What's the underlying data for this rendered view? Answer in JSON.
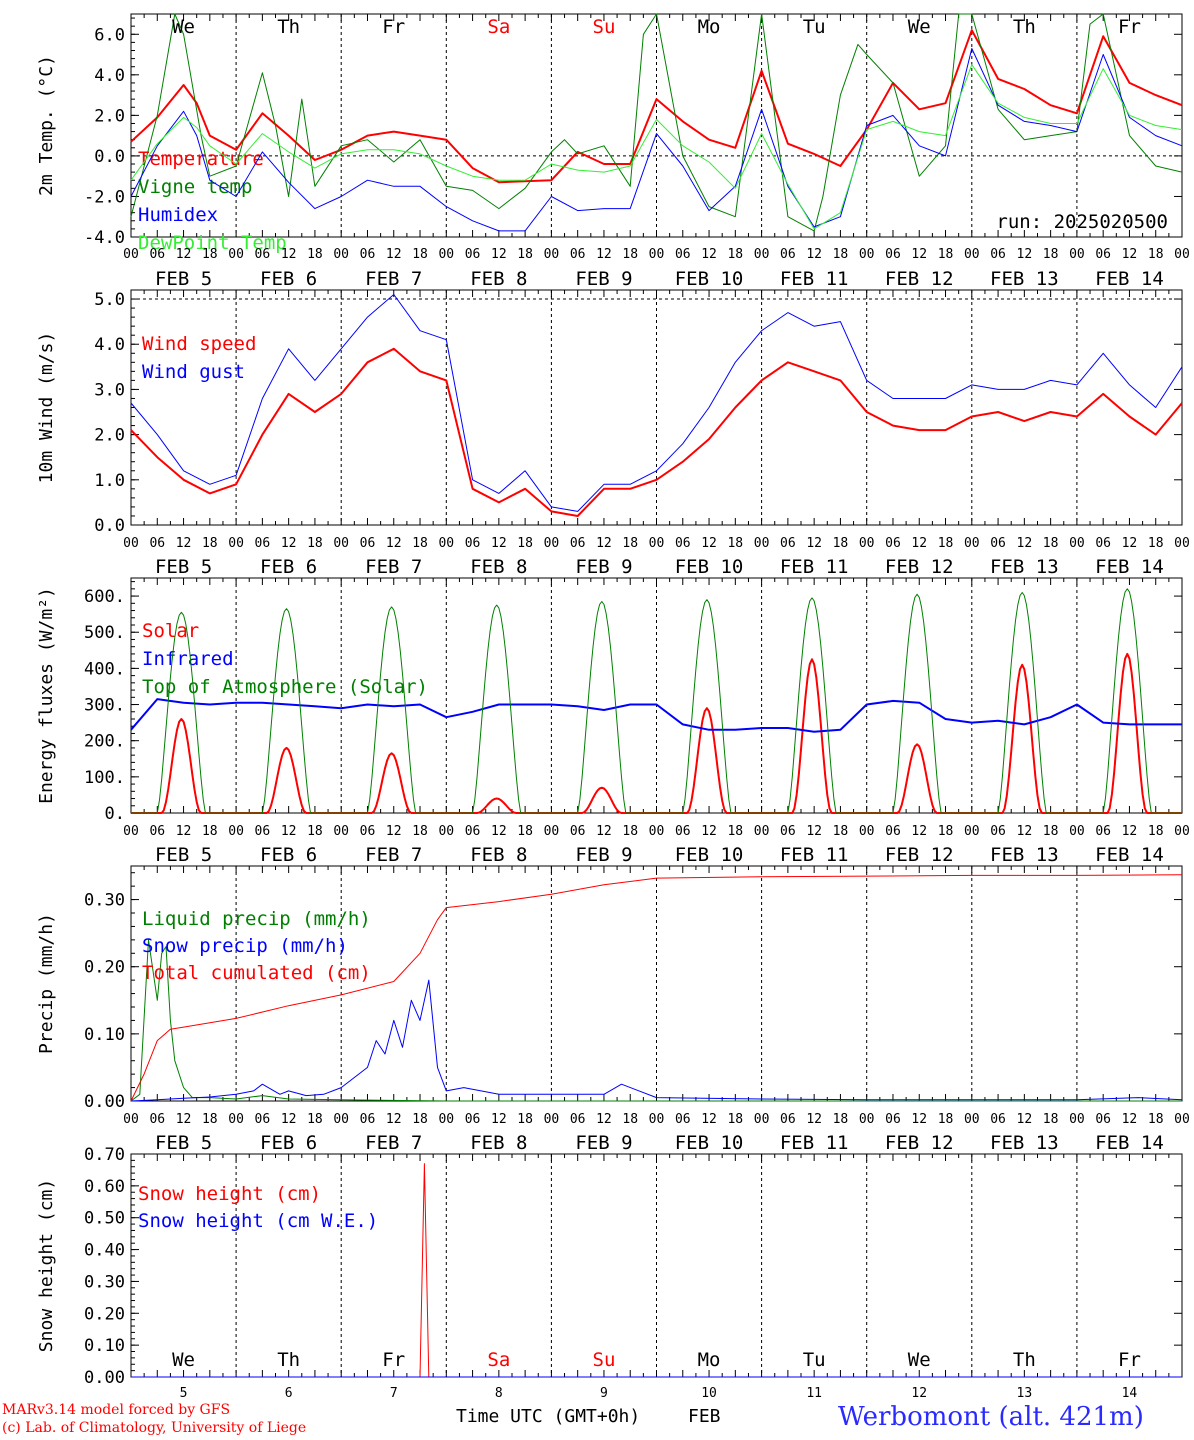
{
  "meta": {
    "run_label": "run: 2025020500",
    "footer_model": "MARv3.14 model forced by GFS",
    "footer_lab": "(c) Lab. of Climatology, University of Liege",
    "footer_axis_title": "Time UTC (GMT+0h)",
    "footer_month": "FEB",
    "station": "Werbomont (alt. 421m)"
  },
  "colors": {
    "red": "#ff0000",
    "green": "#008000",
    "blue": "#0000ff",
    "lightgreen": "#33ee33",
    "weekend": "#ff0000",
    "station": "#2a2aff"
  },
  "days": [
    {
      "abbr": "We",
      "date": "FEB  5",
      "num": "5",
      "weekend": false
    },
    {
      "abbr": "Th",
      "date": "FEB  6",
      "num": "6",
      "weekend": false
    },
    {
      "abbr": "Fr",
      "date": "FEB  7",
      "num": "7",
      "weekend": false
    },
    {
      "abbr": "Sa",
      "date": "FEB  8",
      "num": "8",
      "weekend": true
    },
    {
      "abbr": "Su",
      "date": "FEB  9",
      "num": "9",
      "weekend": true
    },
    {
      "abbr": "Mo",
      "date": "FEB 10",
      "num": "10",
      "weekend": false
    },
    {
      "abbr": "Tu",
      "date": "FEB 11",
      "num": "11",
      "weekend": false
    },
    {
      "abbr": "We",
      "date": "FEB 12",
      "num": "12",
      "weekend": false
    },
    {
      "abbr": "Th",
      "date": "FEB 13",
      "num": "13",
      "weekend": false
    },
    {
      "abbr": "Fr",
      "date": "FEB 14",
      "num": "14",
      "weekend": false
    }
  ],
  "hour_labels": [
    "00",
    "06",
    "12",
    "18"
  ],
  "chart_data": [
    {
      "id": "temp",
      "type": "line",
      "ylabel": "2m Temp. (°C)",
      "ylim": [
        -4,
        7
      ],
      "yticks": [
        -4,
        -2,
        0,
        2,
        4,
        6
      ],
      "ytick_labels": [
        "-4.0",
        "-2.0",
        "0.0",
        "2.0",
        "4.0",
        "6.0"
      ],
      "ref_line": 0,
      "x_unit": "hours since FEB 5 00 UTC",
      "series": [
        {
          "name": "Temperature",
          "color": "#ff0000",
          "width": 2,
          "x": [
            0,
            6,
            12,
            15,
            18,
            24,
            30,
            36,
            42,
            48,
            54,
            60,
            66,
            72,
            78,
            84,
            96,
            102,
            108,
            114,
            120,
            126,
            132,
            138,
            144,
            150,
            156,
            162,
            168,
            174,
            180,
            186,
            192,
            198,
            204,
            210,
            216,
            222,
            228,
            234,
            240
          ],
          "y": [
            0.7,
            1.9,
            3.5,
            2.6,
            1.0,
            0.3,
            2.1,
            1.0,
            -0.2,
            0.3,
            1.0,
            1.2,
            1.0,
            0.8,
            -0.6,
            -1.3,
            -1.2,
            0.2,
            -0.4,
            -0.4,
            2.8,
            1.7,
            0.8,
            0.4,
            4.2,
            0.6,
            0.1,
            -0.5,
            1.3,
            3.6,
            2.3,
            2.6,
            6.2,
            3.8,
            3.3,
            2.5,
            2.1,
            5.9,
            3.6,
            3.0,
            2.5
          ]
        },
        {
          "name": "Vigne temp",
          "color": "#008000",
          "width": 1,
          "x": [
            0,
            6,
            10,
            12,
            16,
            18,
            24,
            30,
            33,
            36,
            39,
            42,
            48,
            54,
            60,
            66,
            72,
            78,
            84,
            90,
            96,
            99,
            102,
            108,
            114,
            117,
            120,
            126,
            132,
            138,
            144,
            150,
            156,
            158,
            162,
            166,
            168,
            174,
            180,
            186,
            189,
            192,
            198,
            204,
            210,
            216,
            219,
            222,
            228,
            234,
            240
          ],
          "y": [
            -3.0,
            2.0,
            7.0,
            6.0,
            1.0,
            -1.0,
            -0.5,
            4.1,
            1.5,
            -2.0,
            2.8,
            -1.5,
            0.5,
            0.8,
            -0.3,
            0.8,
            -1.5,
            -1.7,
            -2.6,
            -1.6,
            0.2,
            0.8,
            0.1,
            0.5,
            -1.5,
            6.0,
            7.0,
            0.0,
            -2.5,
            -3.0,
            7.0,
            -3.0,
            -3.7,
            -2.0,
            3.0,
            5.5,
            5.0,
            3.6,
            -1.0,
            0.5,
            7.0,
            7.0,
            2.3,
            0.8,
            1.0,
            1.2,
            6.5,
            7.0,
            1.0,
            -0.5,
            -0.8
          ]
        },
        {
          "name": "Humidex",
          "color": "#0000ff",
          "width": 1,
          "x": [
            0,
            6,
            12,
            15,
            18,
            24,
            30,
            36,
            42,
            48,
            54,
            60,
            66,
            72,
            78,
            84,
            90,
            96,
            102,
            108,
            114,
            120,
            126,
            132,
            138,
            144,
            150,
            156,
            162,
            168,
            174,
            180,
            186,
            192,
            198,
            204,
            210,
            216,
            222,
            228,
            234,
            240
          ],
          "y": [
            -2.0,
            0.5,
            2.2,
            1.0,
            -1.2,
            -2.0,
            0.2,
            -1.3,
            -2.6,
            -2.0,
            -1.2,
            -1.5,
            -1.5,
            -2.5,
            -3.2,
            -3.7,
            -3.7,
            -2.0,
            -2.7,
            -2.6,
            -2.6,
            1.1,
            -0.5,
            -2.7,
            -1.5,
            2.3,
            -1.5,
            -3.5,
            -3.0,
            1.5,
            2.0,
            0.5,
            0.0,
            5.3,
            2.5,
            1.7,
            1.5,
            1.2,
            5.0,
            1.9,
            1.0,
            0.5
          ]
        },
        {
          "name": "DewPoint Temp",
          "color": "#33ee33",
          "width": 1,
          "x": [
            0,
            6,
            12,
            15,
            18,
            24,
            30,
            36,
            42,
            48,
            54,
            60,
            66,
            72,
            78,
            84,
            90,
            96,
            102,
            108,
            114,
            120,
            126,
            132,
            138,
            144,
            150,
            156,
            162,
            168,
            174,
            180,
            186,
            192,
            198,
            204,
            210,
            216,
            222,
            228,
            234,
            240
          ],
          "y": [
            -1.2,
            0.6,
            1.9,
            1.4,
            0.5,
            -0.4,
            1.1,
            0.2,
            -0.6,
            0.1,
            0.3,
            0.3,
            0.1,
            -0.5,
            -1.0,
            -1.2,
            -1.2,
            -0.4,
            -0.7,
            -0.8,
            -0.5,
            1.8,
            0.5,
            -0.3,
            -1.6,
            1.1,
            -1.4,
            -3.6,
            -2.8,
            1.3,
            1.7,
            1.2,
            1.0,
            4.5,
            2.6,
            1.9,
            1.6,
            1.6,
            4.3,
            2.0,
            1.5,
            1.3
          ]
        }
      ]
    },
    {
      "id": "wind",
      "type": "line",
      "ylabel": "10m Wind (m/s)",
      "ylim": [
        0,
        5.2
      ],
      "yticks": [
        0,
        1,
        2,
        3,
        4,
        5
      ],
      "ytick_labels": [
        "0.0",
        "1.0",
        "2.0",
        "3.0",
        "4.0",
        "5.0"
      ],
      "ref_line": 5,
      "series": [
        {
          "name": "Wind speed",
          "color": "#ff0000",
          "width": 2,
          "x": [
            0,
            6,
            12,
            18,
            24,
            30,
            36,
            42,
            48,
            54,
            60,
            66,
            72,
            78,
            84,
            90,
            96,
            102,
            108,
            114,
            120,
            126,
            132,
            138,
            144,
            150,
            156,
            162,
            168,
            174,
            180,
            186,
            192,
            198,
            204,
            210,
            216,
            222,
            228,
            234,
            240
          ],
          "y": [
            2.1,
            1.5,
            1.0,
            0.7,
            0.9,
            2.0,
            2.9,
            2.5,
            2.9,
            3.6,
            3.9,
            3.4,
            3.2,
            0.8,
            0.5,
            0.8,
            0.3,
            0.2,
            0.8,
            0.8,
            1.0,
            1.4,
            1.9,
            2.6,
            3.2,
            3.6,
            3.4,
            3.2,
            2.5,
            2.2,
            2.1,
            2.1,
            2.4,
            2.5,
            2.3,
            2.5,
            2.4,
            2.9,
            2.4,
            2.0,
            2.7
          ]
        },
        {
          "name": "Wind gust",
          "color": "#0000ff",
          "width": 1,
          "x": [
            0,
            6,
            12,
            18,
            24,
            30,
            36,
            42,
            48,
            54,
            60,
            66,
            72,
            78,
            84,
            90,
            96,
            102,
            108,
            114,
            120,
            126,
            132,
            138,
            144,
            150,
            156,
            162,
            168,
            174,
            180,
            186,
            192,
            198,
            204,
            210,
            216,
            222,
            228,
            234,
            240
          ],
          "y": [
            2.7,
            2.0,
            1.2,
            0.9,
            1.1,
            2.8,
            3.9,
            3.2,
            3.9,
            4.6,
            5.1,
            4.3,
            4.1,
            1.0,
            0.7,
            1.2,
            0.4,
            0.3,
            0.9,
            0.9,
            1.2,
            1.8,
            2.6,
            3.6,
            4.3,
            4.7,
            4.4,
            4.5,
            3.2,
            2.8,
            2.8,
            2.8,
            3.1,
            3.0,
            3.0,
            3.2,
            3.1,
            3.8,
            3.1,
            2.6,
            3.5
          ]
        }
      ]
    },
    {
      "id": "energy",
      "type": "line",
      "ylabel": "Energy fluxes (W/m²)",
      "ylim": [
        0,
        650
      ],
      "yticks": [
        0,
        100,
        200,
        300,
        400,
        500,
        600
      ],
      "ytick_labels": [
        "0.",
        "100.",
        "200.",
        "300.",
        "400.",
        "500.",
        "600."
      ],
      "ref_line": null,
      "series": [
        {
          "name": "Solar",
          "color": "#ff0000",
          "width": 2,
          "days_peak": [
            260,
            180,
            165,
            40,
            70,
            290,
            425,
            190,
            410,
            440
          ]
        },
        {
          "name": "Infrared",
          "color": "#0000ff",
          "width": 2,
          "x": [
            0,
            6,
            12,
            18,
            24,
            30,
            36,
            42,
            48,
            54,
            60,
            66,
            72,
            78,
            84,
            90,
            96,
            102,
            108,
            114,
            120,
            126,
            132,
            138,
            144,
            150,
            156,
            162,
            168,
            174,
            180,
            186,
            192,
            198,
            204,
            210,
            216,
            222,
            228,
            234,
            240
          ],
          "y": [
            230,
            315,
            305,
            300,
            305,
            305,
            300,
            295,
            290,
            300,
            295,
            300,
            265,
            280,
            300,
            300,
            300,
            295,
            285,
            300,
            300,
            245,
            230,
            230,
            235,
            235,
            225,
            230,
            300,
            310,
            305,
            260,
            250,
            255,
            245,
            265,
            300,
            250,
            245,
            245,
            245
          ]
        },
        {
          "name": "Top of Atmosphere (Solar)",
          "color": "#008000",
          "width": 1,
          "days_peak": [
            555,
            565,
            570,
            575,
            585,
            590,
            595,
            605,
            610,
            620
          ]
        }
      ]
    },
    {
      "id": "precip",
      "type": "line",
      "ylabel": "Precip (mm/h)",
      "ylim": [
        0,
        0.35
      ],
      "yticks": [
        0,
        0.1,
        0.2,
        0.3
      ],
      "ytick_labels": [
        "0.00",
        "0.10",
        "0.20",
        "0.30"
      ],
      "ref_line": null,
      "series": [
        {
          "name": "Liquid precip (mm/h)",
          "color": "#008000",
          "width": 1,
          "x": [
            0,
            2,
            4,
            6,
            7,
            8,
            9,
            10,
            12,
            14,
            18,
            24,
            30,
            36,
            48,
            72,
            240
          ],
          "y": [
            0,
            0.01,
            0.24,
            0.15,
            0.22,
            0.23,
            0.12,
            0.06,
            0.02,
            0.005,
            0.005,
            0.003,
            0.008,
            0.003,
            0.002,
            0.0,
            0.0
          ]
        },
        {
          "name": "Snow precip (mm/h)",
          "color": "#0000ff",
          "width": 1,
          "x": [
            0,
            6,
            12,
            18,
            24,
            28,
            30,
            34,
            36,
            40,
            44,
            48,
            54,
            56,
            58,
            60,
            62,
            64,
            66,
            68,
            70,
            72,
            76,
            84,
            96,
            108,
            112,
            120,
            144,
            168,
            216,
            230,
            240
          ],
          "y": [
            0,
            0.002,
            0.004,
            0.006,
            0.01,
            0.015,
            0.025,
            0.01,
            0.015,
            0.008,
            0.01,
            0.02,
            0.05,
            0.09,
            0.07,
            0.12,
            0.08,
            0.15,
            0.12,
            0.18,
            0.05,
            0.015,
            0.02,
            0.01,
            0.01,
            0.01,
            0.025,
            0.005,
            0.003,
            0.002,
            0.002,
            0.005,
            0.002
          ]
        },
        {
          "name": "Total cumulated (cm)",
          "color": "#ff0000",
          "width": 1,
          "x": [
            0,
            3,
            6,
            9,
            12,
            24,
            36,
            48,
            60,
            66,
            70,
            72,
            84,
            96,
            108,
            120,
            144,
            168,
            192,
            216,
            240
          ],
          "y": [
            0,
            0.04,
            0.09,
            0.107,
            0.11,
            0.123,
            0.142,
            0.158,
            0.178,
            0.22,
            0.27,
            0.288,
            0.297,
            0.308,
            0.322,
            0.332,
            0.334,
            0.335,
            0.336,
            0.336,
            0.337
          ]
        }
      ]
    },
    {
      "id": "snow",
      "type": "line",
      "ylabel": "Snow height (cm)",
      "ylim": [
        0,
        0.7
      ],
      "yticks": [
        0,
        0.1,
        0.2,
        0.3,
        0.4,
        0.5,
        0.6,
        0.7
      ],
      "ytick_labels": [
        "0.00",
        "0.10",
        "0.20",
        "0.30",
        "0.40",
        "0.50",
        "0.60",
        "0.70"
      ],
      "ref_line": null,
      "series": [
        {
          "name": "Snow height (cm)",
          "color": "#ff0000",
          "width": 1,
          "x": [
            0,
            64,
            66,
            67,
            68,
            240
          ],
          "y": [
            0,
            0,
            0,
            0.67,
            0,
            0
          ]
        },
        {
          "name": "Snow height (cm W.E.)",
          "color": "#0000ff",
          "width": 1,
          "x": [
            0,
            240
          ],
          "y": [
            0,
            0
          ]
        }
      ]
    }
  ]
}
